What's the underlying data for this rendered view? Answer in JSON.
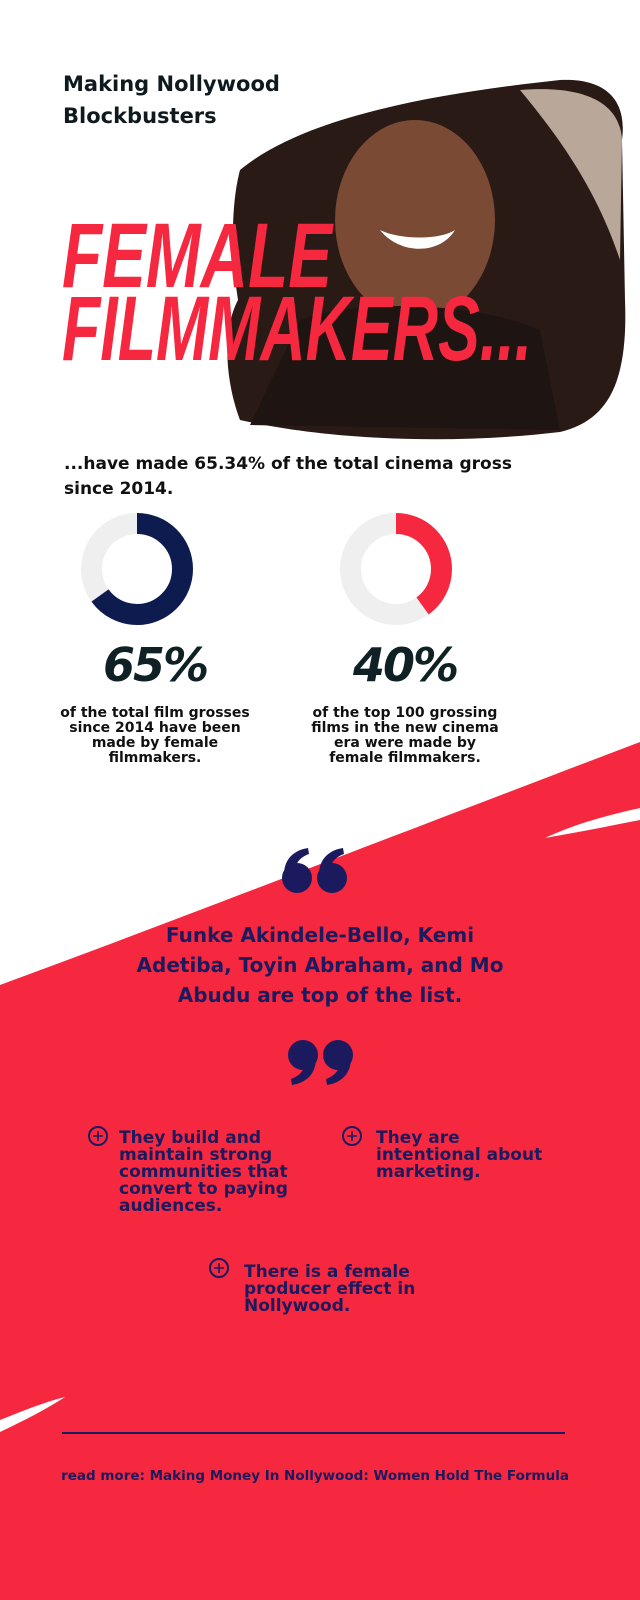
{
  "header": {
    "title": "Making Nollywood Blockbusters"
  },
  "hero": {
    "headline_line1": "FEMALE",
    "headline_line2": "FILMMAKERS..."
  },
  "intro": "...have made 65.34% of the total cinema gross since 2014.",
  "stats": [
    {
      "value": 65,
      "label": "65%",
      "caption": "of the total film grosses since 2014 have been made by female filmmakers.",
      "color": "#0d1b4f"
    },
    {
      "value": 40,
      "label": "40%",
      "caption": "of the top 100 grossing films in the new cinema era were made by female filmmakers.",
      "color": "#f5283f"
    }
  ],
  "quote": "Funke Akindele-Bello, Kemi Adetiba, Toyin Abraham, and Mo Abudu are top of the list.",
  "reasons": [
    "They build and maintain strong communities that convert to paying audiences.",
    "They are intentional about marketing.",
    "There is a female producer effect in Nollywood."
  ],
  "footer": "read more: Making Money In Nollywood: Women Hold The Formula"
}
